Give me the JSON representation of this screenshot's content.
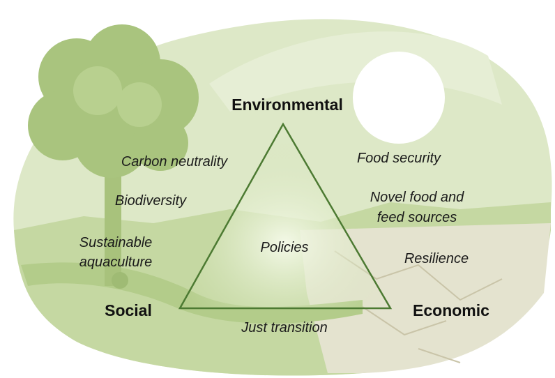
{
  "vertices": {
    "top": "Environmental",
    "left": "Social",
    "right": "Economic"
  },
  "center": "Policies",
  "topics": {
    "environmental_social": [
      [
        "Carbon neutrality"
      ],
      [
        "Biodiversity"
      ],
      [
        "Sustainable",
        "aquaculture"
      ]
    ],
    "environmental_economic": [
      [
        "Food security"
      ],
      [
        "Novel food and",
        "feed sources"
      ],
      [
        "Resilience"
      ]
    ],
    "social_economic": [
      [
        "Just transition"
      ]
    ]
  }
}
